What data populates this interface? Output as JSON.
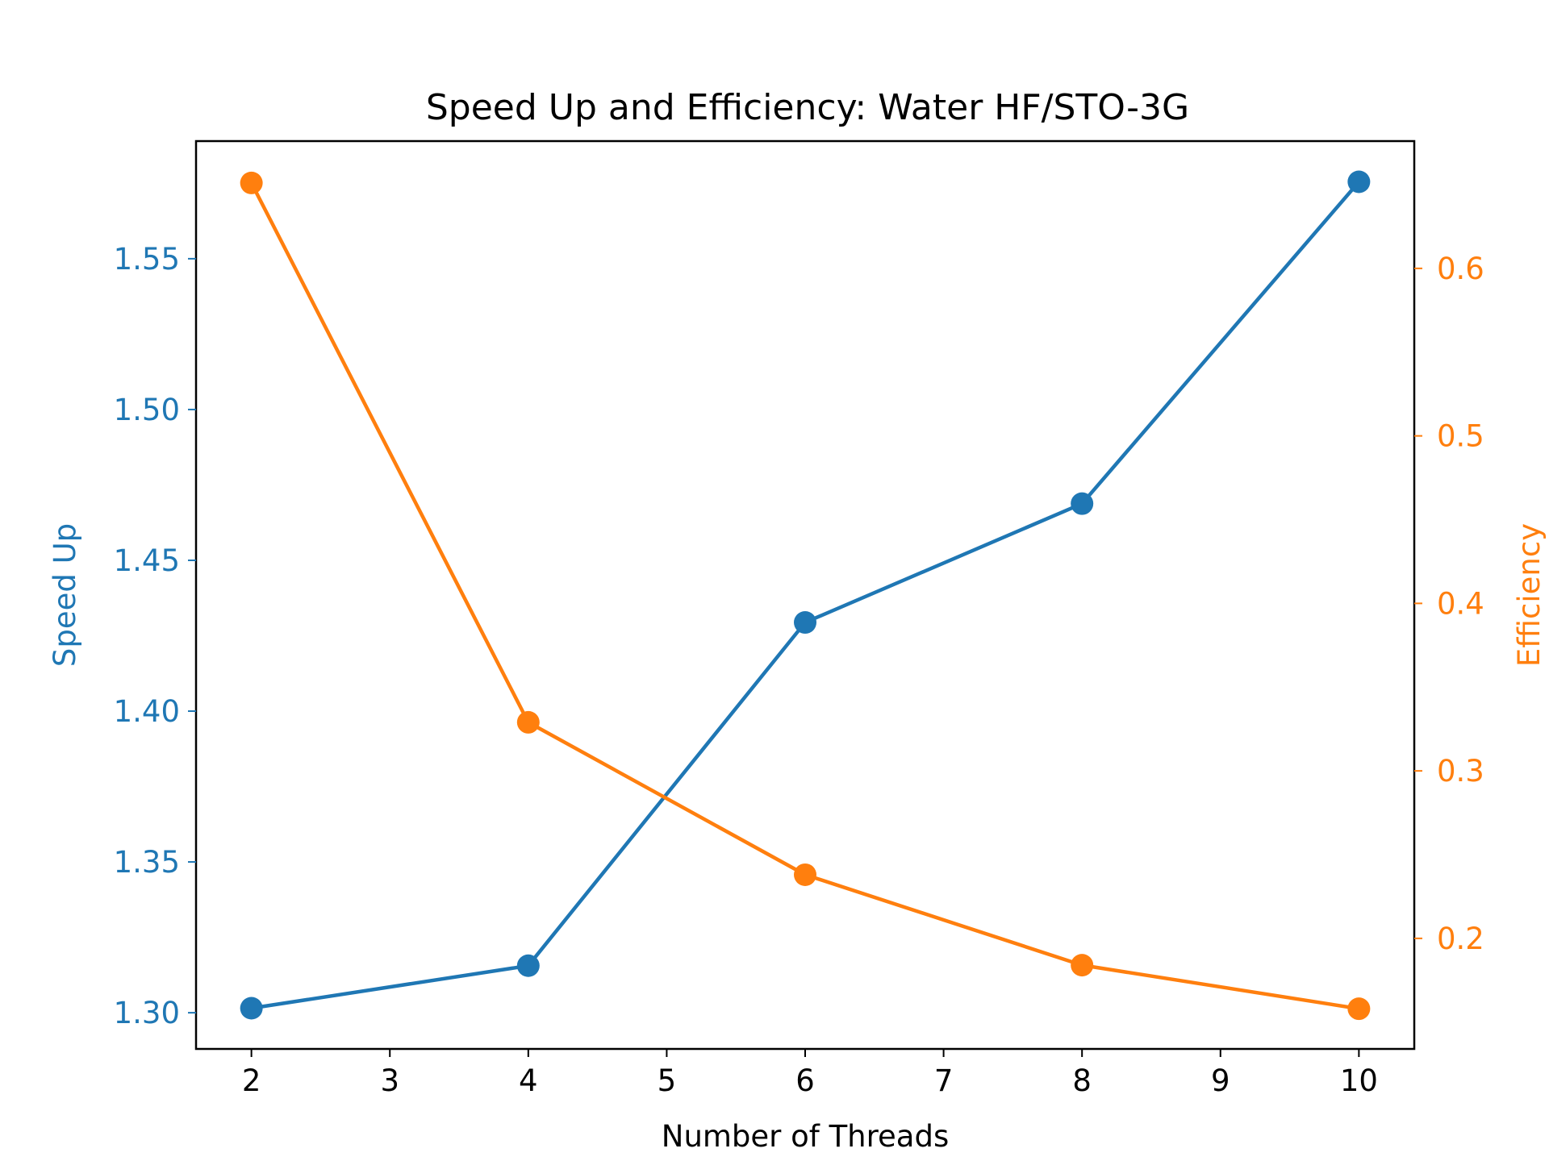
{
  "chart_data": {
    "type": "line",
    "title": "Speed Up and Efficiency: Water HF/STO-3G",
    "xlabel": "Number of Threads",
    "x": [
      2,
      4,
      6,
      8,
      10
    ],
    "xlim": [
      1.6,
      10.4
    ],
    "xticks": [
      "2",
      "3",
      "4",
      "5",
      "6",
      "7",
      "8",
      "9",
      "10"
    ],
    "grid": false,
    "legend": "none",
    "colors": {
      "speedup": "#1f77b4",
      "efficiency": "#ff7f0e"
    },
    "series": [
      {
        "name": "Speed Up",
        "axis": "left",
        "ylabel": "Speed Up",
        "values": [
          1.3015,
          1.3156,
          1.4294,
          1.4688,
          1.5755
        ],
        "ylim": [
          1.288,
          1.589
        ],
        "yticks": [
          "1.30",
          "1.35",
          "1.40",
          "1.45",
          "1.50",
          "1.55"
        ]
      },
      {
        "name": "Efficiency",
        "axis": "right",
        "ylabel": "Efficiency",
        "values": [
          0.651,
          0.329,
          0.238,
          0.184,
          0.158
        ],
        "ylim": [
          0.134,
          0.676
        ],
        "yticks": [
          "0.2",
          "0.3",
          "0.4",
          "0.5",
          "0.6"
        ]
      }
    ]
  }
}
